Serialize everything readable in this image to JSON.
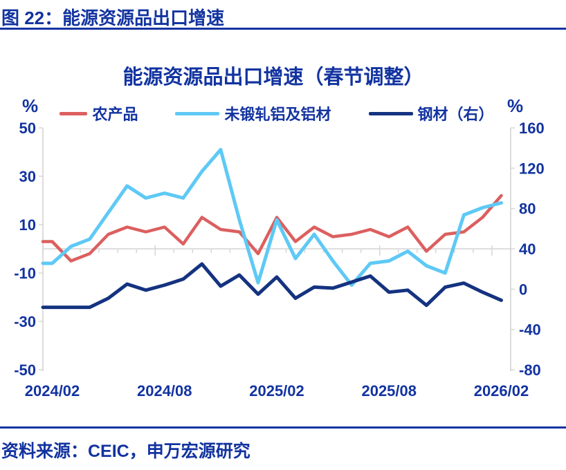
{
  "header": {
    "title": "图 22：能源资源品出口增速"
  },
  "footer": {
    "source": "资料来源：CEIC，申万宏源研究"
  },
  "colors": {
    "text_blue": "#1233A0",
    "axis_gray": "#D4D4D4",
    "series_red": "#DC5F5F",
    "series_cyan": "#5EC9F5",
    "series_navy": "#143380"
  },
  "chart_data": {
    "type": "line",
    "title": "能源资源品出口增速（春节调整）",
    "legend_position": "top",
    "grid": "zero-line-only",
    "left_axis": {
      "unit": "%",
      "min": -50,
      "max": 50,
      "ticks": [
        50,
        30,
        10,
        -10,
        -30,
        -50
      ]
    },
    "right_axis": {
      "unit": "%",
      "min": -80,
      "max": 160,
      "ticks": [
        160,
        120,
        80,
        40,
        0,
        -40,
        -80
      ]
    },
    "x_tick_labels": [
      "2024/02",
      "2024/08",
      "2025/02",
      "2025/08",
      "2026/02"
    ],
    "x_tick_indices": [
      0,
      6,
      12,
      18,
      24
    ],
    "categories": [
      "2024/02",
      "2024/03",
      "2024/04",
      "2024/05",
      "2024/06",
      "2024/07",
      "2024/08",
      "2024/09",
      "2024/10",
      "2024/11",
      "2024/12",
      "2025/01",
      "2025/02",
      "2025/03",
      "2025/04",
      "2025/05",
      "2025/06",
      "2025/07",
      "2025/08",
      "2025/09",
      "2025/10",
      "2025/11",
      "2025/12",
      "2026/01",
      "2026/02"
    ],
    "series": [
      {
        "name": "农产品",
        "axis": "left",
        "color": "#DC5F5F",
        "values": [
          3,
          -5,
          -2,
          6,
          9,
          7,
          9,
          2,
          13,
          8,
          7,
          -2,
          13,
          3,
          9,
          5,
          6,
          8,
          5,
          9,
          -1,
          6,
          7,
          13,
          22
        ]
      },
      {
        "name": "未锻轧铝及铝材",
        "axis": "left",
        "color": "#5EC9F5",
        "values": [
          -6,
          1,
          4,
          15,
          26,
          21,
          23,
          21,
          32,
          41,
          12,
          -14,
          12,
          -4,
          6,
          -5,
          -15,
          -6,
          -5,
          -1,
          -7,
          -10,
          14,
          17,
          19
        ]
      },
      {
        "name": "钢材（右）",
        "axis": "right",
        "color": "#143380",
        "values": [
          -18,
          -18,
          -18,
          -9,
          5,
          -1,
          4,
          10,
          25,
          3,
          14,
          -5,
          12,
          -9,
          2,
          1,
          7,
          13,
          -3,
          -1,
          -16,
          2,
          6,
          -3,
          -11
        ]
      }
    ]
  }
}
